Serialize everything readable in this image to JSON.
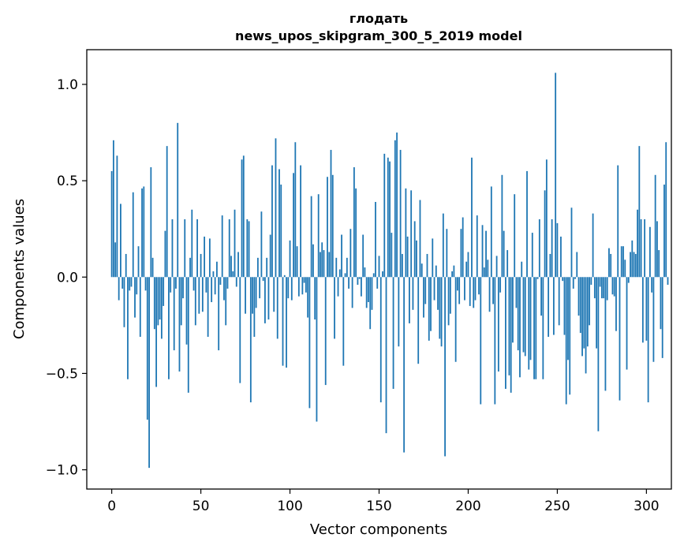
{
  "chart_data": {
    "type": "bar",
    "title_lines": [
      "глодать",
      "news_upos_skipgram_300_5_2019 model"
    ],
    "xlabel": "Vector components",
    "ylabel": "Components values",
    "xlim": [
      -14,
      314
    ],
    "ylim": [
      -1.1,
      1.18
    ],
    "x_ticks": [
      0,
      50,
      100,
      150,
      200,
      250,
      300
    ],
    "x_tick_labels": [
      "0",
      "50",
      "100",
      "150",
      "200",
      "250",
      "300"
    ],
    "y_ticks": [
      1.0,
      0.5,
      0.0,
      -0.5,
      -1.0
    ],
    "y_tick_labels": [
      "1.0",
      "0.5",
      "0.0",
      "−0.5",
      "−1.0"
    ],
    "bar_color": "#1f77b4",
    "grid": false,
    "legend": "none",
    "values": [
      0.55,
      0.71,
      0.18,
      0.63,
      -0.12,
      0.38,
      -0.06,
      -0.26,
      0.12,
      -0.53,
      -0.07,
      -0.05,
      0.44,
      -0.21,
      -0.09,
      0.16,
      -0.31,
      0.46,
      0.47,
      -0.07,
      -0.74,
      -0.99,
      0.57,
      0.1,
      -0.27,
      -0.57,
      -0.25,
      -0.22,
      -0.32,
      -0.15,
      0.24,
      0.68,
      -0.53,
      -0.08,
      0.3,
      -0.38,
      -0.06,
      0.8,
      -0.49,
      -0.25,
      -0.11,
      0.3,
      -0.35,
      -0.6,
      0.1,
      0.35,
      -0.07,
      -0.25,
      0.3,
      -0.19,
      0.12,
      -0.18,
      0.21,
      -0.08,
      -0.31,
      0.2,
      -0.13,
      0.03,
      -0.09,
      0.08,
      -0.38,
      -0.04,
      0.32,
      -0.12,
      -0.25,
      -0.06,
      0.3,
      0.11,
      0.03,
      0.35,
      -0.05,
      0.13,
      -0.55,
      0.61,
      0.63,
      -0.19,
      0.3,
      0.29,
      -0.65,
      -0.19,
      -0.31,
      -0.16,
      0.1,
      -0.11,
      0.34,
      -0.02,
      -0.24,
      0.1,
      -0.22,
      0.22,
      0.58,
      -0.18,
      0.72,
      -0.32,
      0.56,
      0.48,
      -0.46,
      0.01,
      -0.47,
      -0.11,
      0.19,
      -0.12,
      0.54,
      0.7,
      0.16,
      -0.1,
      0.58,
      -0.09,
      -0.03,
      -0.08,
      -0.21,
      -0.68,
      0.42,
      0.17,
      -0.22,
      -0.75,
      0.43,
      0.13,
      0.18,
      0.14,
      -0.56,
      0.52,
      0.13,
      0.66,
      0.53,
      -0.32,
      0.1,
      -0.1,
      0.04,
      0.22,
      -0.46,
      0.02,
      0.1,
      -0.06,
      0.25,
      -0.16,
      0.57,
      0.46,
      -0.04,
      -0.01,
      -0.1,
      0.22,
      0.05,
      -0.16,
      -0.13,
      -0.27,
      -0.17,
      0.02,
      0.39,
      -0.06,
      0.11,
      -0.65,
      0.03,
      0.64,
      -0.81,
      0.62,
      0.6,
      0.23,
      -0.58,
      0.71,
      0.75,
      -0.36,
      0.66,
      0.12,
      -0.91,
      0.46,
      0.21,
      -0.24,
      0.45,
      -0.17,
      0.29,
      0.19,
      -0.45,
      0.4,
      0.07,
      -0.21,
      -0.14,
      0.12,
      -0.33,
      -0.28,
      0.2,
      -0.12,
      0.06,
      -0.17,
      -0.32,
      -0.36,
      0.33,
      -0.93,
      0.25,
      -0.25,
      -0.19,
      0.03,
      0.06,
      -0.44,
      -0.07,
      -0.14,
      0.25,
      0.31,
      -0.12,
      0.08,
      0.13,
      -0.15,
      0.62,
      -0.16,
      -0.12,
      0.32,
      -0.09,
      -0.66,
      0.27,
      0.05,
      0.24,
      0.09,
      -0.18,
      0.47,
      -0.14,
      -0.66,
      0.11,
      -0.49,
      -0.08,
      0.53,
      0.24,
      -0.58,
      0.14,
      -0.51,
      -0.6,
      -0.34,
      0.43,
      -0.16,
      -0.38,
      -0.52,
      0.08,
      -0.39,
      -0.41,
      0.55,
      -0.48,
      -0.43,
      0.23,
      -0.53,
      -0.53,
      -0.01,
      0.3,
      -0.2,
      -0.53,
      0.45,
      0.61,
      -0.31,
      0.12,
      0.3,
      -0.3,
      1.06,
      0.28,
      -0.25,
      0.21,
      -0.02,
      -0.3,
      -0.66,
      -0.43,
      -0.61,
      0.36,
      -0.06,
      -0.01,
      0.13,
      -0.2,
      -0.29,
      -0.41,
      -0.37,
      -0.5,
      -0.36,
      -0.25,
      -0.04,
      0.33,
      -0.11,
      -0.37,
      -0.8,
      -0.05,
      -0.11,
      -0.11,
      -0.59,
      -0.12,
      0.15,
      0.12,
      -0.09,
      -0.1,
      -0.28,
      0.58,
      -0.64,
      0.16,
      0.16,
      0.09,
      -0.48,
      -0.03,
      0.13,
      0.19,
      0.13,
      0.12,
      0.35,
      0.68,
      0.3,
      -0.34,
      0.3,
      -0.33,
      -0.65,
      0.26,
      -0.08,
      -0.44,
      0.53,
      0.29,
      0.14,
      -0.27,
      -0.42,
      0.48,
      0.7,
      -0.04
    ]
  }
}
